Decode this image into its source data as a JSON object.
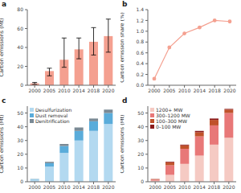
{
  "chart_data": [
    {
      "type": "bar",
      "title": "a",
      "categories": [
        "2000",
        "2005",
        "2010",
        "2014",
        "2018",
        "2020"
      ],
      "values": [
        2,
        15,
        27,
        38,
        46,
        52
      ],
      "yerr_low": [
        1,
        5,
        8,
        10,
        14,
        17
      ],
      "yerr_high": [
        1,
        3,
        23,
        12,
        15,
        18
      ],
      "color": "#f4a090",
      "ylabel": "Carbon emissions (Mt)",
      "ylim": [
        0,
        80
      ],
      "yticks": [
        0,
        20,
        40,
        60,
        80
      ]
    },
    {
      "type": "line",
      "title": "b",
      "categories": [
        "2000",
        "2005",
        "2010",
        "2014",
        "2018",
        "2020"
      ],
      "values": [
        0.12,
        0.7,
        0.96,
        1.07,
        1.2,
        1.18
      ],
      "color": "#f4a090",
      "marker": "circle",
      "ylabel": "Carbon emission share (%)",
      "ylim": [
        0.0,
        1.4
      ],
      "yticks": [
        {
          "value": 0,
          "label": "0.0"
        },
        0.2,
        0.4,
        0.6,
        0.8,
        {
          "value": 1,
          "label": "1.0"
        },
        1.2,
        1.4
      ]
    },
    {
      "type": "bar",
      "title": "c",
      "stacked": true,
      "legend": "upper left",
      "categories": [
        "2000",
        "2005",
        "2010",
        "2014",
        "2018",
        "2020"
      ],
      "series": [
        {
          "name": "Desulfurization",
          "color": "#b3d9f0",
          "values": [
            1.5,
            11,
            21,
            30,
            37,
            42
          ]
        },
        {
          "name": "Dust removal",
          "color": "#5aacda",
          "values": [
            0.4,
            2.5,
            5,
            7,
            7,
            8
          ]
        },
        {
          "name": "Denitrification",
          "color": "#7a8a95",
          "values": [
            0.1,
            1,
            1.5,
            2.5,
            2,
            2.5
          ]
        }
      ],
      "ylabel": "Carbon emissions (Mt)",
      "ylim": [
        0,
        55
      ],
      "yticks": [
        0,
        10,
        20,
        30,
        40,
        50
      ]
    },
    {
      "type": "bar",
      "title": "d",
      "stacked": true,
      "legend": "upper left",
      "categories": [
        "2000",
        "2005",
        "2010",
        "2014",
        "2018",
        "2020"
      ],
      "series": [
        {
          "name": "1200+ MW",
          "color": "#f5cac3",
          "values": [
            0.8,
            5,
            13,
            19,
            27,
            32
          ]
        },
        {
          "name": "300–1200 MW",
          "color": "#e87878",
          "values": [
            0.8,
            7,
            11,
            14,
            14,
            18
          ]
        },
        {
          "name": "100–300 MW",
          "color": "#c0522a",
          "values": [
            0.3,
            2,
            2.5,
            3,
            4,
            2.5
          ]
        },
        {
          "name": "0–100 MW",
          "color": "#8b1a1a",
          "values": [
            0.1,
            0.5,
            0.5,
            1,
            1,
            0.5
          ]
        }
      ],
      "ylabel": "Carbon emissions (Mt)",
      "ylim": [
        0,
        55
      ],
      "yticks": [
        0,
        10,
        20,
        30,
        40,
        50
      ]
    }
  ]
}
